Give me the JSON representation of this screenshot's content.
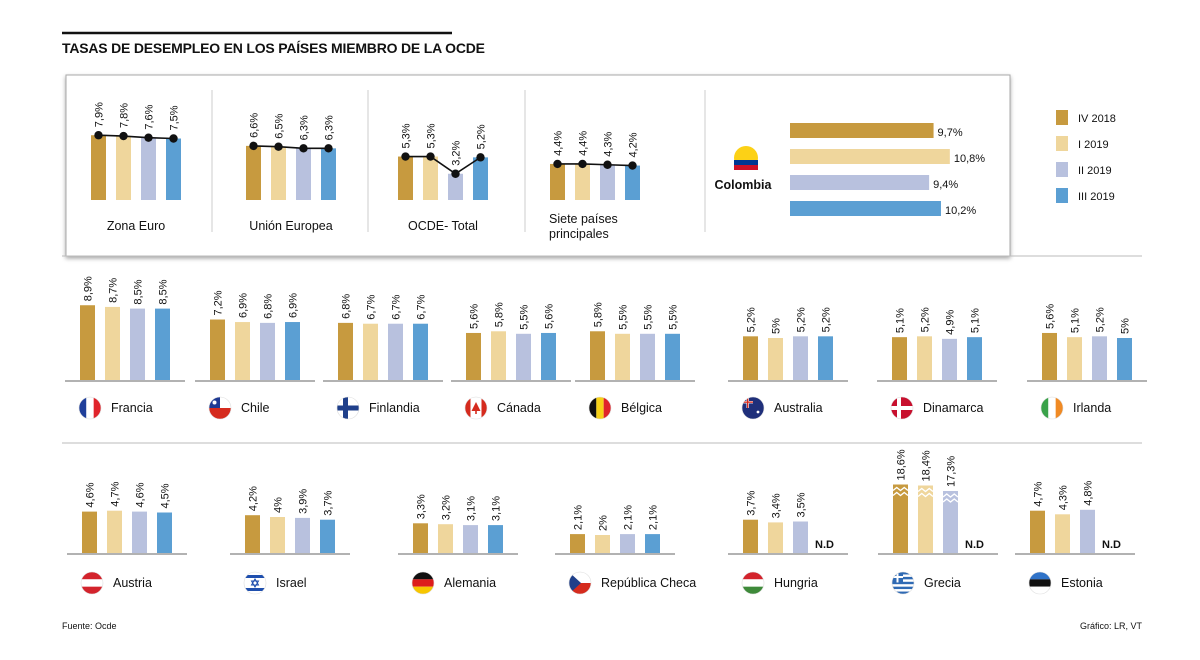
{
  "title": "TASAS DE DESEMPLEO EN LOS PAÍSES MIEMBRO DE LA OCDE",
  "source": "Fuente: Ocde",
  "credit": "Gráfico: LR, VT",
  "colors": {
    "IV 2018": "#c79a3f",
    "I 2019": "#efd69c",
    "II 2019": "#b8c1de",
    "III 2019": "#5b9fd3",
    "axis": "#666666",
    "line": "#111111"
  },
  "chart_data": {
    "type": "bar",
    "title": "TASAS DE DESEMPLEO EN LOS PAÍSES MIEMBRO DE LA OCDE",
    "unit": "%",
    "periods": [
      "IV 2018",
      "I 2019",
      "II 2019",
      "III 2019"
    ],
    "legend": [
      "IV 2018",
      "I 2019",
      "II 2019",
      "III 2019"
    ],
    "legend_position": "top-right",
    "aggregates": [
      {
        "name": "Zona Euro",
        "values": [
          7.9,
          7.8,
          7.6,
          7.5
        ],
        "labels": [
          "7,9%",
          "7,8%",
          "7,6%",
          "7,5%"
        ]
      },
      {
        "name": "Unión Europea",
        "values": [
          6.6,
          6.5,
          6.3,
          6.3
        ],
        "labels": [
          "6,6%",
          "6,5%",
          "6,3%",
          "6,3%"
        ]
      },
      {
        "name": "OCDE- Total",
        "values": [
          5.3,
          5.3,
          3.2,
          5.2
        ],
        "labels": [
          "5,3%",
          "5,3%",
          "3,2%",
          "5,2%"
        ]
      },
      {
        "name": "Siete países principales",
        "name_lines": [
          "Siete países",
          "principales"
        ],
        "values": [
          4.4,
          4.4,
          4.3,
          4.2
        ],
        "labels": [
          "4,4%",
          "4,4%",
          "4,3%",
          "4,2%"
        ]
      }
    ],
    "colombia": {
      "name": "Colombia",
      "values": [
        9.7,
        10.8,
        9.4,
        10.2
      ],
      "labels": [
        "9,7%",
        "10,8%",
        "9,4%",
        "10,2%"
      ]
    },
    "countries_row1": [
      {
        "name": "Francia",
        "flag": "france-flag",
        "values": [
          8.9,
          8.7,
          8.5,
          8.5
        ],
        "labels": [
          "8,9%",
          "8,7%",
          "8,5%",
          "8,5%"
        ]
      },
      {
        "name": "Chile",
        "flag": "chile-flag",
        "values": [
          7.2,
          6.9,
          6.8,
          6.9
        ],
        "labels": [
          "7,2%",
          "6,9%",
          "6,8%",
          "6,9%"
        ]
      },
      {
        "name": "Finlandia",
        "flag": "finland-flag",
        "values": [
          6.8,
          6.7,
          6.7,
          6.7
        ],
        "labels": [
          "6,8%",
          "6,7%",
          "6,7%",
          "6,7%"
        ]
      },
      {
        "name": "Cánada",
        "flag": "canada-flag",
        "values": [
          5.6,
          5.8,
          5.5,
          5.6
        ],
        "labels": [
          "5,6%",
          "5,8%",
          "5,5%",
          "5,6%"
        ]
      },
      {
        "name": "Bélgica",
        "flag": "belgium-flag",
        "values": [
          5.8,
          5.5,
          5.5,
          5.5
        ],
        "labels": [
          "5,8%",
          "5,5%",
          "5,5%",
          "5,5%"
        ]
      },
      {
        "name": "Australia",
        "flag": "australia-flag",
        "values": [
          5.2,
          5.0,
          5.2,
          5.2
        ],
        "labels": [
          "5,2%",
          "5%",
          "5,2%",
          "5,2%"
        ]
      },
      {
        "name": "Dinamarca",
        "flag": "denmark-flag",
        "values": [
          5.1,
          5.2,
          4.9,
          5.1
        ],
        "labels": [
          "5,1%",
          "5,2%",
          "4,9%",
          "5,1%"
        ]
      },
      {
        "name": "Irlanda",
        "flag": "ireland-flag",
        "values": [
          5.6,
          5.1,
          5.2,
          5.0
        ],
        "labels": [
          "5,6%",
          "5,1%",
          "5,2%",
          "5%"
        ]
      }
    ],
    "countries_row2": [
      {
        "name": "Austria",
        "flag": "austria-flag",
        "values": [
          4.6,
          4.7,
          4.6,
          4.5
        ],
        "labels": [
          "4,6%",
          "4,7%",
          "4,6%",
          "4,5%"
        ]
      },
      {
        "name": "Israel",
        "flag": "israel-flag",
        "values": [
          4.2,
          4.0,
          3.9,
          3.7
        ],
        "labels": [
          "4,2%",
          "4%",
          "3,9%",
          "3,7%"
        ]
      },
      {
        "name": "Alemania",
        "flag": "germany-flag",
        "values": [
          3.3,
          3.2,
          3.1,
          3.1
        ],
        "labels": [
          "3,3%",
          "3,2%",
          "3,1%",
          "3,1%"
        ]
      },
      {
        "name": "República Checa",
        "flag": "czech-flag",
        "values": [
          2.1,
          2.0,
          2.1,
          2.1
        ],
        "labels": [
          "2,1%",
          "2%",
          "2,1%",
          "2,1%"
        ]
      },
      {
        "name": "Hungria",
        "flag": "hungary-flag",
        "values": [
          3.7,
          3.4,
          3.5,
          null
        ],
        "labels": [
          "3,7%",
          "3,4%",
          "3,5%",
          "N.D"
        ]
      },
      {
        "name": "Grecia",
        "flag": "greece-flag",
        "values": [
          18.6,
          18.4,
          17.3,
          null
        ],
        "labels": [
          "18,6%",
          "18,4%",
          "17,3%",
          "N.D"
        ],
        "axis_break": true
      },
      {
        "name": "Estonia",
        "flag": "estonia-flag",
        "values": [
          4.7,
          4.3,
          4.8,
          null
        ],
        "labels": [
          "4,7%",
          "4,3%",
          "4,8%",
          "N.D"
        ]
      }
    ]
  }
}
